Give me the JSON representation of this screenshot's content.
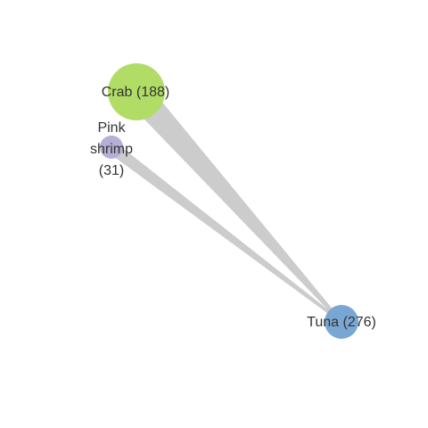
{
  "graph": {
    "nodes": [
      {
        "id": "crab",
        "label": "Crab (188)",
        "lines": [
          "Crab (188)"
        ],
        "value": 188,
        "color": "#b1dd67"
      },
      {
        "id": "shrimp",
        "label": "Pink shrimp (31)",
        "lines": [
          "Pink",
          "shrimp",
          "(31)"
        ],
        "value": 31,
        "color": "#b6aed6"
      },
      {
        "id": "tuna",
        "label": "Tuna (276)",
        "lines": [
          "Tuna (276)"
        ],
        "value": 276,
        "color": "#79a7d3"
      }
    ],
    "edges": [
      {
        "source": "crab",
        "target": "tuna"
      },
      {
        "source": "shrimp",
        "target": "tuna"
      }
    ],
    "edge_color": "#cccccc"
  }
}
